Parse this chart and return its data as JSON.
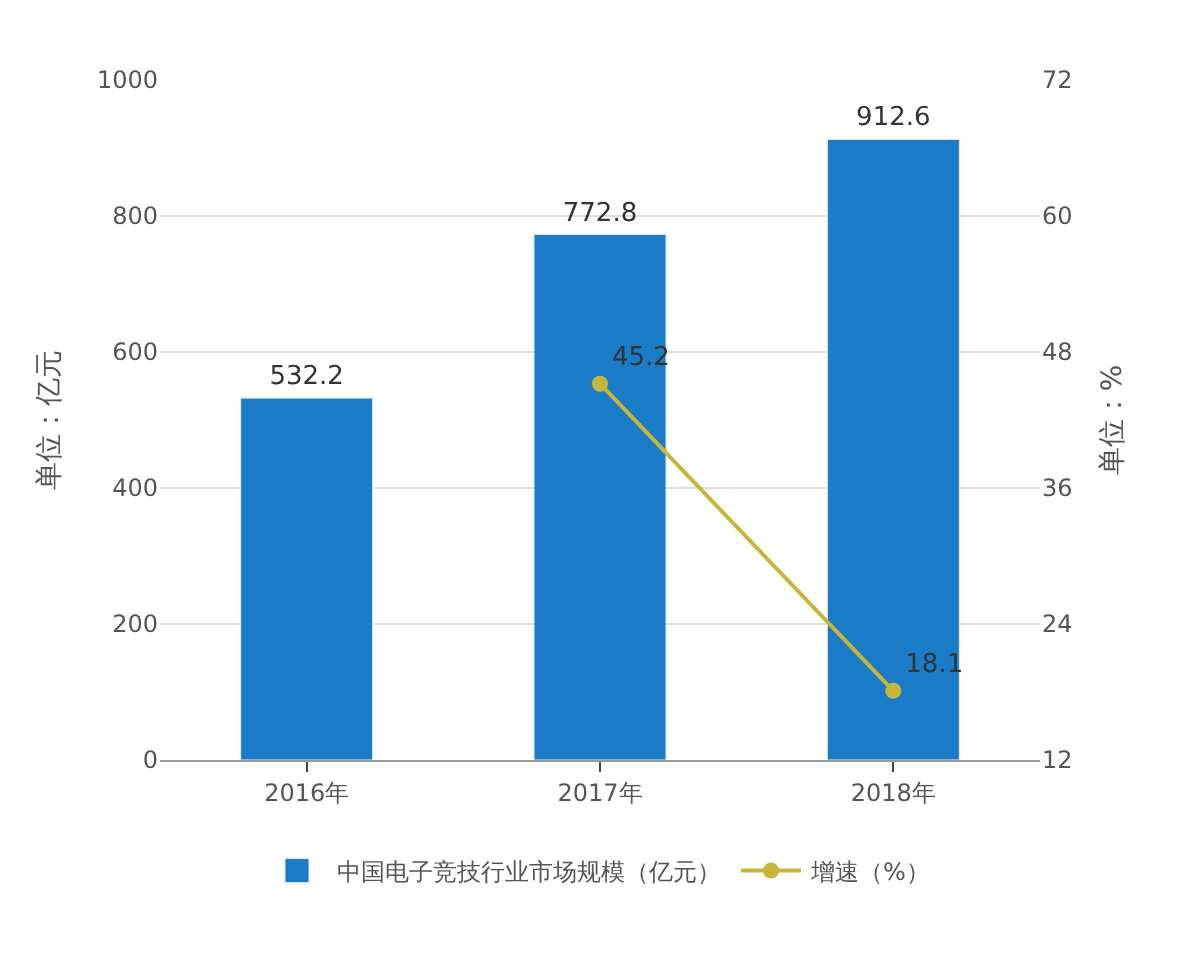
{
  "chart_data": {
    "type": "bar",
    "categories": [
      "2016年",
      "2017年",
      "2018年"
    ],
    "series": [
      {
        "name": "中国电子竞技行业市场规模（亿元）",
        "color": "#1a7cc7",
        "values": [
          532.2,
          772.8,
          912.6
        ]
      },
      {
        "name": "增速（%）",
        "color": "#c9b53a",
        "values": [
          null,
          45.2,
          18.1
        ],
        "type": "line",
        "axis": "y2",
        "marker": "circle"
      }
    ],
    "ylabel": "单位：亿元",
    "y2label": "单位：%",
    "ylim": [
      0,
      1000
    ],
    "yticks": [
      0,
      200,
      400,
      600,
      800,
      1000
    ],
    "y2lim": [
      12,
      72
    ],
    "y2ticks": [
      12,
      24,
      36,
      48,
      60,
      72
    ],
    "data_labels": true,
    "grid": "y",
    "legend": "bottom"
  }
}
